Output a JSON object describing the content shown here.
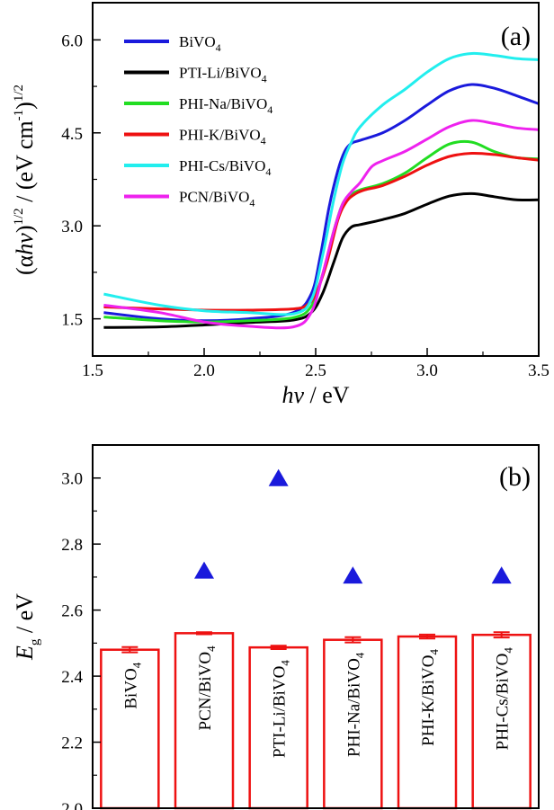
{
  "chart_data": [
    {
      "panel": "(a)",
      "type": "line",
      "title": "",
      "xlabel": "hv / eV",
      "ylabel": "(αhv)1/2 / (eV cm-1)1/2",
      "xlim": [
        1.5,
        3.5
      ],
      "ylim": [
        0.9,
        6.6
      ],
      "xticks": [
        "1.5",
        "2.0",
        "2.5",
        "3.0",
        "3.5"
      ],
      "yticks": [
        "1.5",
        "3.0",
        "4.5",
        "6.0"
      ],
      "legend_position": "top-left",
      "series": [
        {
          "name": "BiVO4",
          "name_main": "BiVO",
          "name_sub": "4",
          "color": "#1a1adc",
          "x": [
            1.55,
            1.8,
            2.0,
            2.2,
            2.4,
            2.48,
            2.52,
            2.56,
            2.6,
            2.63,
            2.66,
            2.7,
            2.8,
            2.9,
            3.0,
            3.1,
            3.2,
            3.3,
            3.4,
            3.5
          ],
          "y": [
            1.6,
            1.5,
            1.47,
            1.5,
            1.6,
            1.9,
            2.5,
            3.3,
            3.9,
            4.2,
            4.33,
            4.38,
            4.5,
            4.7,
            4.95,
            5.18,
            5.28,
            5.22,
            5.1,
            4.97
          ]
        },
        {
          "name": "PTI-Li/BiVO4",
          "name_main": "PTI-Li/BiVO",
          "name_sub": "4",
          "color": "#000000",
          "x": [
            1.55,
            1.8,
            2.0,
            2.2,
            2.4,
            2.48,
            2.53,
            2.58,
            2.62,
            2.66,
            2.7,
            2.8,
            2.9,
            3.0,
            3.1,
            3.2,
            3.3,
            3.4,
            3.5
          ],
          "y": [
            1.36,
            1.37,
            1.4,
            1.44,
            1.48,
            1.6,
            1.9,
            2.4,
            2.8,
            2.98,
            3.02,
            3.1,
            3.2,
            3.35,
            3.48,
            3.52,
            3.47,
            3.42,
            3.42
          ]
        },
        {
          "name": "PHI-Na/BiVO4",
          "name_main": "PHI-Na/BiVO",
          "name_sub": "4",
          "color": "#22dd22",
          "x": [
            1.55,
            1.8,
            2.0,
            2.2,
            2.4,
            2.48,
            2.53,
            2.58,
            2.62,
            2.66,
            2.7,
            2.8,
            2.9,
            3.0,
            3.1,
            3.2,
            3.3,
            3.4,
            3.5
          ],
          "y": [
            1.53,
            1.47,
            1.45,
            1.47,
            1.52,
            1.7,
            2.2,
            2.9,
            3.35,
            3.5,
            3.58,
            3.68,
            3.85,
            4.1,
            4.32,
            4.35,
            4.2,
            4.1,
            4.08
          ]
        },
        {
          "name": "PHI-K/BiVO4",
          "name_main": "PHI-K/BiVO",
          "name_sub": "4",
          "color": "#ee1111",
          "x": [
            1.55,
            1.8,
            2.0,
            2.2,
            2.4,
            2.46,
            2.5,
            2.55,
            2.6,
            2.64,
            2.68,
            2.72,
            2.8,
            2.9,
            3.0,
            3.1,
            3.2,
            3.3,
            3.4,
            3.5
          ],
          "y": [
            1.69,
            1.66,
            1.64,
            1.64,
            1.66,
            1.72,
            1.9,
            2.4,
            3.1,
            3.4,
            3.52,
            3.58,
            3.65,
            3.8,
            3.98,
            4.12,
            4.17,
            4.15,
            4.1,
            4.06
          ]
        },
        {
          "name": "PHI-Cs/BiVO4",
          "name_main": "PHI-Cs/BiVO",
          "name_sub": "4",
          "color": "#22eeee",
          "x": [
            1.55,
            1.8,
            2.0,
            2.2,
            2.4,
            2.48,
            2.53,
            2.58,
            2.62,
            2.66,
            2.7,
            2.8,
            2.9,
            3.0,
            3.1,
            3.2,
            3.3,
            3.4,
            3.5
          ],
          "y": [
            1.9,
            1.72,
            1.63,
            1.6,
            1.58,
            1.8,
            2.5,
            3.4,
            4.0,
            4.35,
            4.6,
            4.95,
            5.2,
            5.48,
            5.7,
            5.78,
            5.75,
            5.7,
            5.68
          ]
        },
        {
          "name": "PCN/BiVO4",
          "name_main": "PCN/BiVO",
          "name_sub": "4",
          "color": "#ee22ee",
          "x": [
            1.55,
            1.8,
            2.0,
            2.2,
            2.4,
            2.48,
            2.53,
            2.58,
            2.62,
            2.66,
            2.7,
            2.75,
            2.8,
            2.9,
            3.0,
            3.1,
            3.2,
            3.3,
            3.4,
            3.5
          ],
          "y": [
            1.72,
            1.6,
            1.45,
            1.38,
            1.37,
            1.6,
            2.2,
            2.9,
            3.35,
            3.55,
            3.7,
            3.95,
            4.05,
            4.2,
            4.4,
            4.6,
            4.7,
            4.65,
            4.58,
            4.55
          ]
        }
      ]
    },
    {
      "panel": "(b)",
      "type": "bar",
      "title": "",
      "ylabel": "Eg / eV",
      "ylabel_main": "E",
      "ylabel_sub": "g",
      "ylabel_rest": " / eV",
      "ylim": [
        2.0,
        3.1
      ],
      "yticks": [
        "2.0",
        "2.2",
        "2.4",
        "2.6",
        "2.8",
        "3.0"
      ],
      "bar_color": "#ee1111",
      "marker_color": "#1a1adc",
      "categories": [
        "BiVO4",
        "PCN/BiVO4",
        "PTI-Li/BiVO4",
        "PHI-Na/BiVO4",
        "PHI-K/BiVO4",
        "PHI-Cs/BiVO4"
      ],
      "category_main": [
        "BiVO",
        "PCN/BiVO",
        "PTI-Li/BiVO",
        "PHI-Na/BiVO",
        "PHI-K/BiVO",
        "PHI-Cs/BiVO"
      ],
      "category_sub": [
        "4",
        "4",
        "4",
        "4",
        "4",
        "4"
      ],
      "values": [
        2.48,
        2.53,
        2.487,
        2.51,
        2.52,
        2.525
      ],
      "errors": [
        0.008,
        0.003,
        0.005,
        0.008,
        0.006,
        0.008
      ],
      "markers": [
        null,
        2.72,
        3.0,
        2.705,
        null,
        2.705
      ]
    }
  ]
}
